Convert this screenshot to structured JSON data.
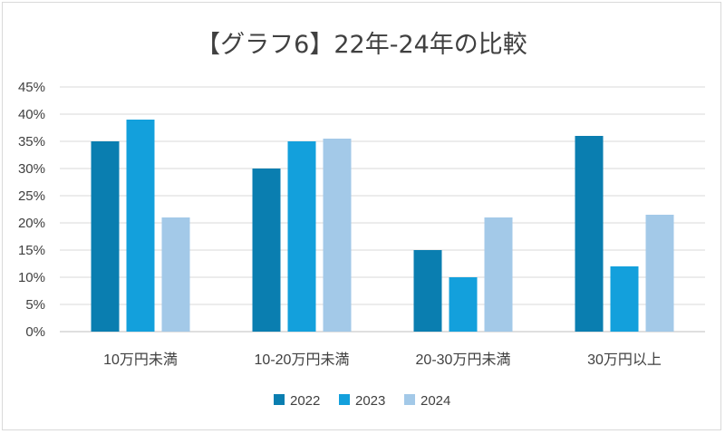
{
  "chart_data": {
    "type": "bar",
    "title": "【グラフ6】22年-24年の比較",
    "categories": [
      "10万円未満",
      "10-20万円未満",
      "20-30万円未満",
      "30万円以上"
    ],
    "series": [
      {
        "name": "2022",
        "color": "#0a7eb0",
        "values": [
          35,
          30,
          15,
          36
        ]
      },
      {
        "name": "2023",
        "color": "#13a0dc",
        "values": [
          39,
          35,
          10,
          12
        ]
      },
      {
        "name": "2024",
        "color": "#a3c9e8",
        "values": [
          21,
          35.5,
          21,
          21.5
        ]
      }
    ],
    "ylim": [
      0,
      45
    ],
    "yticks": [
      "0%",
      "5%",
      "10%",
      "15%",
      "20%",
      "25%",
      "30%",
      "35%",
      "40%",
      "45%"
    ],
    "grid": true,
    "legend_position": "bottom"
  }
}
